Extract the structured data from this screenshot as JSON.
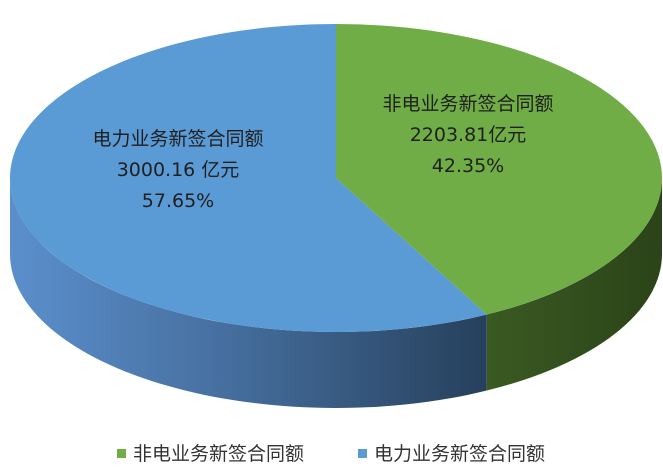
{
  "chart_data": {
    "type": "pie",
    "style": "3d-pie",
    "legend_position": "bottom",
    "series": [
      {
        "name": "非电业务新签合同额",
        "value": 2203.81,
        "value_label": "2203.81亿元",
        "percent_label": "42.35%",
        "color": "#70ad47"
      },
      {
        "name": "电力业务新签合同额",
        "value": 3000.16,
        "value_label": "3000.16 亿元",
        "percent_label": "57.65%",
        "color": "#5b9bd5"
      }
    ]
  }
}
